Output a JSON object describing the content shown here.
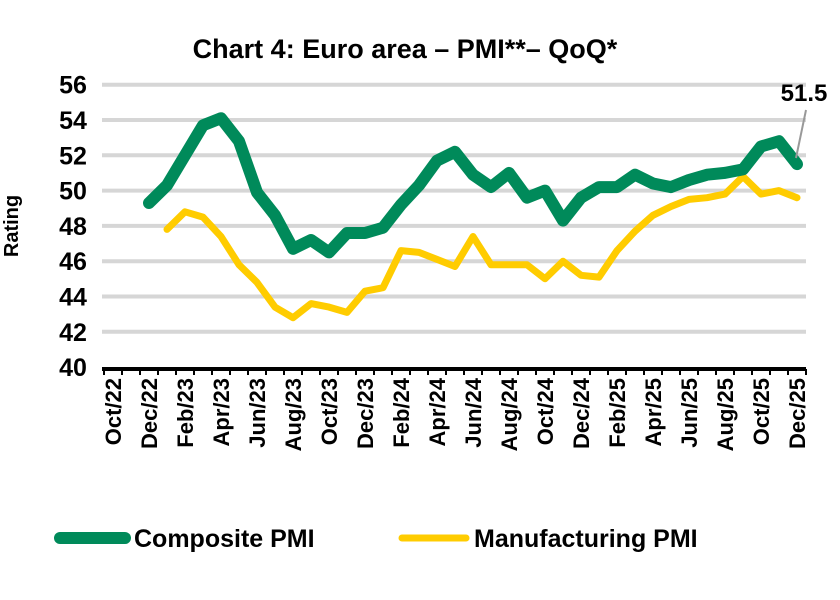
{
  "chart_data": {
    "type": "line",
    "title": "Chart 4: Euro area – PMI**– QoQ*",
    "ylabel": "Rating",
    "xlabel": "",
    "ylim": [
      40,
      56
    ],
    "yticks": [
      "40",
      "42",
      "44",
      "46",
      "48",
      "50",
      "52",
      "54",
      "56"
    ],
    "grid": true,
    "legend_position": "bottom",
    "x": [
      "Oct/22",
      "Nov/22",
      "Dec/22",
      "Jan/23",
      "Feb/23",
      "Mar/23",
      "Apr/23",
      "May/23",
      "Jun/23",
      "Jul/23",
      "Aug/23",
      "Sep/23",
      "Oct/23",
      "Nov/23",
      "Dec/23",
      "Jan/24",
      "Feb/24",
      "Mar/24",
      "Apr/24",
      "May/24",
      "Jun/24",
      "Jul/24",
      "Aug/24",
      "Sep/24",
      "Oct/24",
      "Nov/24",
      "Dec/24",
      "Jan/25",
      "Feb/25",
      "Mar/25",
      "Apr/25",
      "May/25",
      "Jun/25",
      "Jul/25",
      "Aug/25",
      "Sep/25",
      "Oct/25",
      "Nov/25",
      "Dec/25"
    ],
    "xticklabels": [
      "Oct/22",
      "Dec/22",
      "Feb/23",
      "Apr/23",
      "Jun/23",
      "Aug/23",
      "Oct/23",
      "Dec/23",
      "Feb/24",
      "Apr/24",
      "Jun/24",
      "Aug/24",
      "Oct/24",
      "Dec/24",
      "Feb/25",
      "Apr/25",
      "Jun/25",
      "Aug/25",
      "Oct/25",
      "Dec/25"
    ],
    "series": [
      {
        "name": "Composite PMI",
        "color": "#008a5a",
        "values": [
          null,
          null,
          49.3,
          50.3,
          52.0,
          53.7,
          54.1,
          52.8,
          49.9,
          48.6,
          46.7,
          47.2,
          46.5,
          47.6,
          47.6,
          47.9,
          49.2,
          50.3,
          51.7,
          52.2,
          50.9,
          50.2,
          51.0,
          49.6,
          50.0,
          48.3,
          49.6,
          50.2,
          50.2,
          50.9,
          50.4,
          50.2,
          50.6,
          50.9,
          51.0,
          51.2,
          52.5,
          52.8,
          51.5
        ]
      },
      {
        "name": "Manufacturing PMI",
        "color": "#ffcc00",
        "values": [
          null,
          null,
          null,
          47.8,
          48.8,
          48.5,
          47.4,
          45.8,
          44.8,
          43.4,
          42.8,
          43.6,
          43.4,
          43.1,
          44.3,
          44.5,
          46.6,
          46.5,
          46.1,
          45.7,
          47.4,
          45.8,
          45.8,
          45.8,
          45.0,
          46.0,
          45.2,
          45.1,
          46.6,
          47.7,
          48.6,
          49.1,
          49.5,
          49.6,
          49.8,
          50.8,
          49.8,
          50.0,
          49.6
        ]
      }
    ],
    "annotations": [
      {
        "text": "51.5",
        "series": "Composite PMI",
        "x": "Dec/25"
      }
    ]
  }
}
